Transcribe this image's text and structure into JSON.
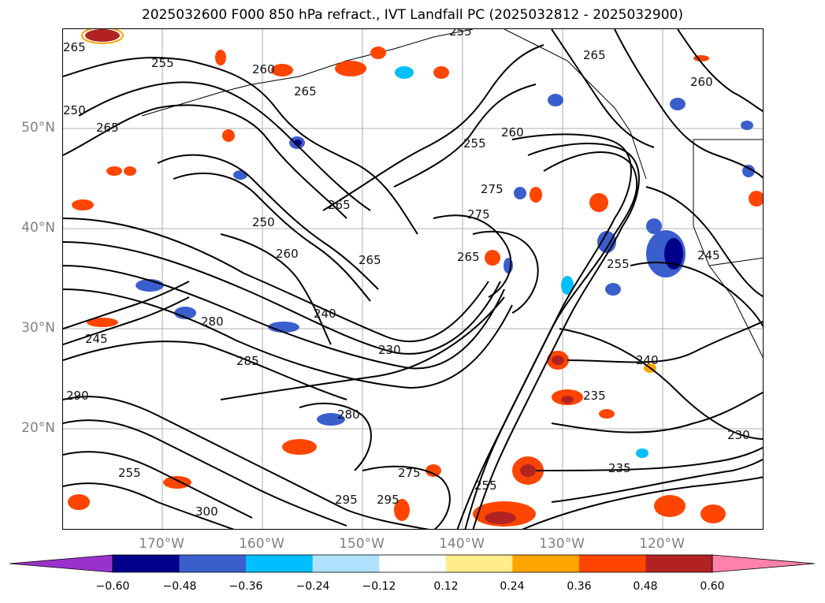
{
  "title": "2025032600 F000 850 hPa refract., IVT Landfall PC (2025032812 - 2025032900)",
  "lat_labels": [
    "50°N",
    "40°N",
    "30°N",
    "20°N"
  ],
  "lon_labels": [
    "170°W",
    "160°W",
    "150°W",
    "140°W",
    "130°W",
    "120°W"
  ],
  "colorbar": {
    "ticks": [
      "−0.60",
      "−0.48",
      "−0.36",
      "−0.24",
      "−0.12",
      "0.12",
      "0.24",
      "0.36",
      "0.48",
      "0.60"
    ],
    "colors": [
      "#9932cc",
      "#00008b",
      "#3a5fcd",
      "#00bfff",
      "#b0e2ff",
      "#ffffff",
      "#ffec8b",
      "#ffa500",
      "#ff4500",
      "#b22222",
      "#ff82ab"
    ]
  },
  "contour_labels": [
    "265",
    "255",
    "260",
    "265",
    "250",
    "265",
    "255",
    "260",
    "265",
    "260",
    "255",
    "265",
    "275",
    "275",
    "250",
    "260",
    "265",
    "265",
    "255",
    "245",
    "280",
    "240",
    "245",
    "240",
    "235",
    "230",
    "235",
    "230",
    "295",
    "295",
    "255",
    "275",
    "255",
    "300",
    "290",
    "280",
    "285"
  ]
}
